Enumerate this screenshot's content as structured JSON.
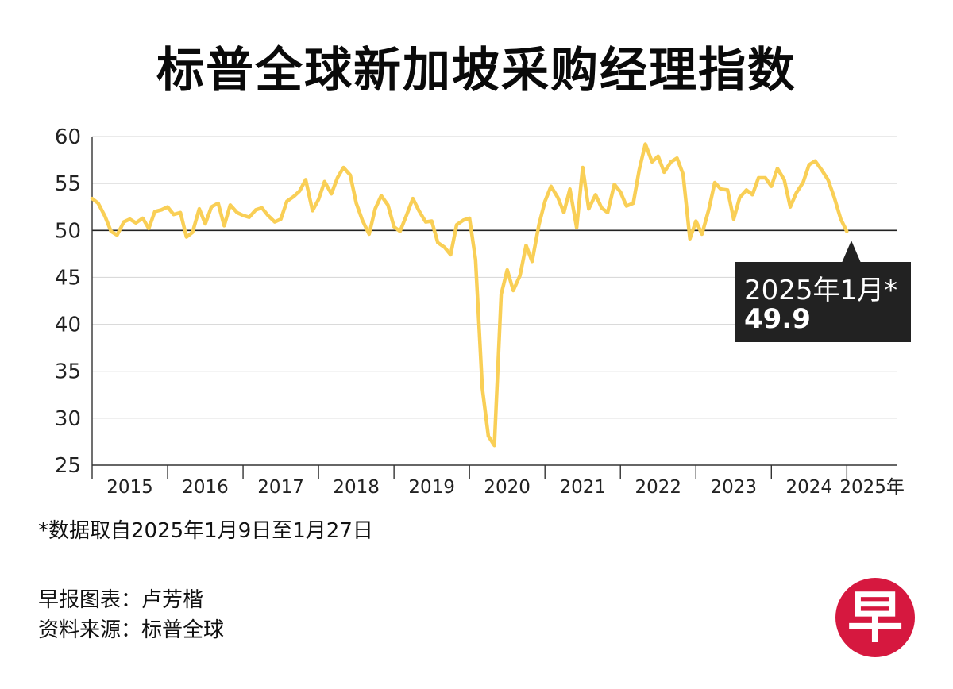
{
  "title": "标普全球新加坡采购经理指数",
  "chart_data": {
    "type": "line",
    "title": "标普全球新加坡采购经理指数",
    "ylim": [
      25,
      60
    ],
    "yticks": [
      25,
      30,
      35,
      40,
      45,
      50,
      55,
      60
    ],
    "reference_line": 50,
    "xlim": [
      2015.0,
      2025.67
    ],
    "xtick_labels": [
      "2015",
      "2016",
      "2017",
      "2018",
      "2019",
      "2020",
      "2021",
      "2022",
      "2023",
      "2024",
      "2025年"
    ],
    "line_color": "#f9cf56",
    "series": [
      {
        "name": "PMI",
        "points": [
          [
            2015.0,
            53.4
          ],
          [
            2015.08,
            52.9
          ],
          [
            2015.17,
            51.5
          ],
          [
            2015.25,
            49.9
          ],
          [
            2015.33,
            49.5
          ],
          [
            2015.42,
            50.9
          ],
          [
            2015.5,
            51.2
          ],
          [
            2015.58,
            50.8
          ],
          [
            2015.67,
            51.3
          ],
          [
            2015.75,
            50.2
          ],
          [
            2015.83,
            52.0
          ],
          [
            2015.92,
            52.2
          ],
          [
            2016.0,
            52.5
          ],
          [
            2016.08,
            51.7
          ],
          [
            2016.17,
            51.9
          ],
          [
            2016.25,
            49.3
          ],
          [
            2016.33,
            49.8
          ],
          [
            2016.42,
            52.3
          ],
          [
            2016.5,
            50.7
          ],
          [
            2016.58,
            52.5
          ],
          [
            2016.67,
            52.9
          ],
          [
            2016.75,
            50.5
          ],
          [
            2016.83,
            52.7
          ],
          [
            2016.92,
            51.9
          ],
          [
            2017.0,
            51.6
          ],
          [
            2017.08,
            51.4
          ],
          [
            2017.17,
            52.2
          ],
          [
            2017.25,
            52.4
          ],
          [
            2017.33,
            51.6
          ],
          [
            2017.42,
            50.9
          ],
          [
            2017.5,
            51.2
          ],
          [
            2017.58,
            53.1
          ],
          [
            2017.67,
            53.6
          ],
          [
            2017.75,
            54.2
          ],
          [
            2017.83,
            55.4
          ],
          [
            2017.92,
            52.1
          ],
          [
            2018.0,
            53.3
          ],
          [
            2018.08,
            55.2
          ],
          [
            2018.17,
            53.9
          ],
          [
            2018.25,
            55.6
          ],
          [
            2018.33,
            56.7
          ],
          [
            2018.42,
            55.9
          ],
          [
            2018.5,
            52.9
          ],
          [
            2018.58,
            51.1
          ],
          [
            2018.67,
            49.6
          ],
          [
            2018.75,
            52.3
          ],
          [
            2018.83,
            53.7
          ],
          [
            2018.92,
            52.7
          ],
          [
            2019.0,
            50.4
          ],
          [
            2019.08,
            49.9
          ],
          [
            2019.17,
            51.7
          ],
          [
            2019.25,
            53.4
          ],
          [
            2019.33,
            52.1
          ],
          [
            2019.42,
            50.9
          ],
          [
            2019.5,
            51.0
          ],
          [
            2019.58,
            48.7
          ],
          [
            2019.67,
            48.2
          ],
          [
            2019.75,
            47.4
          ],
          [
            2019.83,
            50.6
          ],
          [
            2019.92,
            51.1
          ],
          [
            2020.0,
            51.3
          ],
          [
            2020.08,
            46.9
          ],
          [
            2020.17,
            33.2
          ],
          [
            2020.25,
            28.1
          ],
          [
            2020.33,
            27.1
          ],
          [
            2020.42,
            43.2
          ],
          [
            2020.5,
            45.8
          ],
          [
            2020.58,
            43.6
          ],
          [
            2020.67,
            45.2
          ],
          [
            2020.75,
            48.4
          ],
          [
            2020.83,
            46.7
          ],
          [
            2020.92,
            50.6
          ],
          [
            2021.0,
            53.1
          ],
          [
            2021.08,
            54.7
          ],
          [
            2021.17,
            53.5
          ],
          [
            2021.25,
            51.9
          ],
          [
            2021.33,
            54.4
          ],
          [
            2021.42,
            50.3
          ],
          [
            2021.5,
            56.7
          ],
          [
            2021.58,
            52.3
          ],
          [
            2021.67,
            53.8
          ],
          [
            2021.75,
            52.4
          ],
          [
            2021.83,
            51.9
          ],
          [
            2021.92,
            54.9
          ],
          [
            2022.0,
            54.1
          ],
          [
            2022.08,
            52.6
          ],
          [
            2022.17,
            52.9
          ],
          [
            2022.25,
            56.5
          ],
          [
            2022.33,
            59.2
          ],
          [
            2022.42,
            57.3
          ],
          [
            2022.5,
            57.9
          ],
          [
            2022.58,
            56.2
          ],
          [
            2022.67,
            57.3
          ],
          [
            2022.75,
            57.7
          ],
          [
            2022.83,
            56.0
          ],
          [
            2022.92,
            49.1
          ],
          [
            2023.0,
            51.0
          ],
          [
            2023.08,
            49.6
          ],
          [
            2023.17,
            52.2
          ],
          [
            2023.25,
            55.1
          ],
          [
            2023.33,
            54.4
          ],
          [
            2023.42,
            54.3
          ],
          [
            2023.5,
            51.2
          ],
          [
            2023.58,
            53.5
          ],
          [
            2023.67,
            54.3
          ],
          [
            2023.75,
            53.8
          ],
          [
            2023.83,
            55.6
          ],
          [
            2023.92,
            55.6
          ],
          [
            2024.0,
            54.7
          ],
          [
            2024.08,
            56.6
          ],
          [
            2024.17,
            55.4
          ],
          [
            2024.25,
            52.5
          ],
          [
            2024.33,
            54.0
          ],
          [
            2024.42,
            55.1
          ],
          [
            2024.5,
            57.0
          ],
          [
            2024.58,
            57.4
          ],
          [
            2024.67,
            56.4
          ],
          [
            2024.75,
            55.4
          ],
          [
            2024.83,
            53.6
          ],
          [
            2024.92,
            51.2
          ],
          [
            2025.0,
            49.9
          ]
        ]
      }
    ],
    "annotation": {
      "label": "2025年1月*",
      "value": "49.9",
      "x": 2025.0,
      "y": 49.9
    }
  },
  "footnote": "*数据取自2025年1月9日至1月27日",
  "credit_line1": "早报图表：卢芳楷",
  "credit_line2": "资料来源：标普全球",
  "logo_char": "早"
}
